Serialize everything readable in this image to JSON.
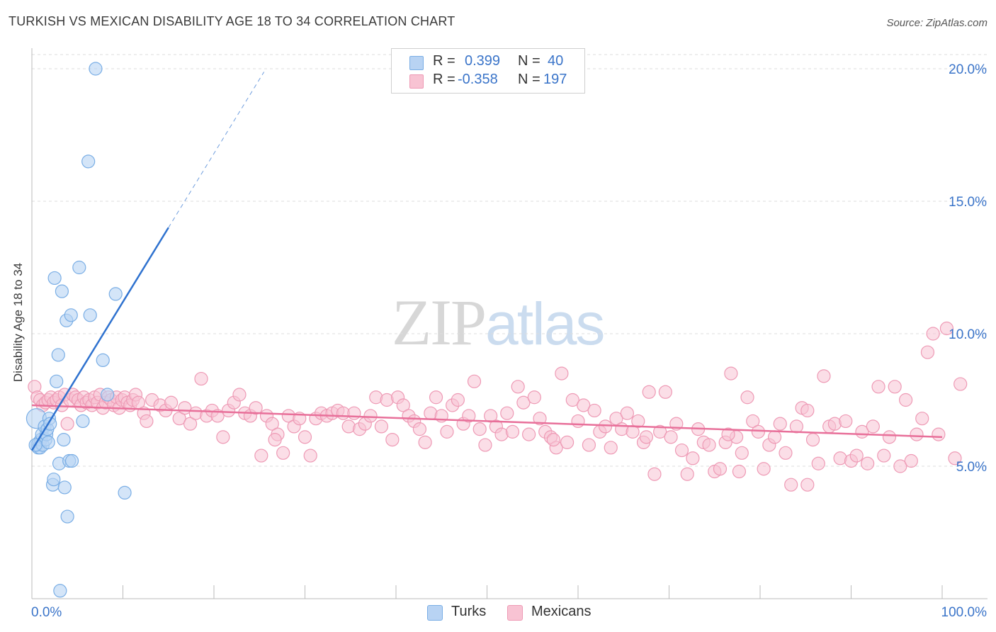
{
  "title": "TURKISH VS MEXICAN DISABILITY AGE 18 TO 34 CORRELATION CHART",
  "source": "Source: ZipAtlas.com",
  "watermark": {
    "zip": "ZIP",
    "atlas": "atlas"
  },
  "legend_top": [
    {
      "r_label": "R =",
      "r_value": "0.399",
      "n_label": "N =",
      "n_value": "40"
    },
    {
      "r_label": "R =",
      "r_value": "-0.358",
      "n_label": "N =",
      "n_value": "197"
    }
  ],
  "legend_bottom": [
    "Turks",
    "Mexicans"
  ],
  "colors": {
    "turks_fill": "#b8d3f3",
    "turks_stroke": "#7aaee5",
    "turks_line": "#2f72cf",
    "mexicans_fill": "#f8c3d3",
    "mexicans_stroke": "#ee9ab5",
    "mexicans_line": "#e8709a",
    "axis_text": "#3a74c9",
    "grid": "#dddddd"
  },
  "chart_data": {
    "type": "scatter",
    "title": "TURKISH VS MEXICAN DISABILITY AGE 18 TO 34 CORRELATION CHART",
    "xlabel": "",
    "ylabel": "Disability Age 18 to 34",
    "xlim": [
      0,
      100
    ],
    "ylim": [
      0,
      20
    ],
    "x_tick_labels": [
      "0.0%",
      "100.0%"
    ],
    "y_ticks": [
      5,
      10,
      15,
      20
    ],
    "y_tick_labels": [
      "5.0%",
      "10.0%",
      "15.0%",
      "20.0%"
    ],
    "grid": true,
    "legend_position": "top-center",
    "series": [
      {
        "name": "Turks",
        "r": 0.399,
        "n": 40,
        "trend": {
          "x1": 0.0,
          "y1": 5.6,
          "x2": 15.0,
          "y2": 14.0,
          "dashed_to_x": 25.5
        },
        "points": [
          [
            0.5,
            6.8
          ],
          [
            0.6,
            5.8
          ],
          [
            0.7,
            5.7
          ],
          [
            0.8,
            5.9
          ],
          [
            0.9,
            5.7
          ],
          [
            1.0,
            6.0
          ],
          [
            1.1,
            6.2
          ],
          [
            1.2,
            5.8
          ],
          [
            1.4,
            6.5
          ],
          [
            1.5,
            6.0
          ],
          [
            1.6,
            6.2
          ],
          [
            1.7,
            6.4
          ],
          [
            1.8,
            5.9
          ],
          [
            1.9,
            6.8
          ],
          [
            2.0,
            6.6
          ],
          [
            2.3,
            4.3
          ],
          [
            2.4,
            4.5
          ],
          [
            2.5,
            12.1
          ],
          [
            2.7,
            8.2
          ],
          [
            2.9,
            9.2
          ],
          [
            3.0,
            5.1
          ],
          [
            3.1,
            0.3
          ],
          [
            3.3,
            11.6
          ],
          [
            3.5,
            6.0
          ],
          [
            3.6,
            4.2
          ],
          [
            3.8,
            10.5
          ],
          [
            3.9,
            3.1
          ],
          [
            4.1,
            5.2
          ],
          [
            4.3,
            10.7
          ],
          [
            4.4,
            5.2
          ],
          [
            5.2,
            12.5
          ],
          [
            5.6,
            6.7
          ],
          [
            6.2,
            16.5
          ],
          [
            6.4,
            10.7
          ],
          [
            7.0,
            20.0
          ],
          [
            7.8,
            9.0
          ],
          [
            8.3,
            7.7
          ],
          [
            9.2,
            11.5
          ],
          [
            10.2,
            4.0
          ],
          [
            0.4,
            5.8
          ]
        ]
      },
      {
        "name": "Mexicans",
        "r": -0.358,
        "n": 197,
        "trend": {
          "x1": 0.0,
          "y1": 7.3,
          "x2": 100.0,
          "y2": 6.1
        },
        "points": [
          [
            0.3,
            8.0
          ],
          [
            0.6,
            7.6
          ],
          [
            0.9,
            7.5
          ],
          [
            1.2,
            7.3
          ],
          [
            1.5,
            7.4
          ],
          [
            1.8,
            7.5
          ],
          [
            2.1,
            7.6
          ],
          [
            2.4,
            7.4
          ],
          [
            2.7,
            7.5
          ],
          [
            3.0,
            7.6
          ],
          [
            3.3,
            7.3
          ],
          [
            3.6,
            7.7
          ],
          [
            3.9,
            6.6
          ],
          [
            4.2,
            7.5
          ],
          [
            4.5,
            7.7
          ],
          [
            4.8,
            7.6
          ],
          [
            5.1,
            7.5
          ],
          [
            5.4,
            7.3
          ],
          [
            5.7,
            7.6
          ],
          [
            6.0,
            7.4
          ],
          [
            6.3,
            7.5
          ],
          [
            6.6,
            7.3
          ],
          [
            6.9,
            7.6
          ],
          [
            7.2,
            7.4
          ],
          [
            7.5,
            7.7
          ],
          [
            7.8,
            7.2
          ],
          [
            8.1,
            7.4
          ],
          [
            8.4,
            7.6
          ],
          [
            8.7,
            7.5
          ],
          [
            9.0,
            7.3
          ],
          [
            9.3,
            7.6
          ],
          [
            9.6,
            7.2
          ],
          [
            9.9,
            7.5
          ],
          [
            10.2,
            7.6
          ],
          [
            10.5,
            7.4
          ],
          [
            10.8,
            7.3
          ],
          [
            11.1,
            7.5
          ],
          [
            11.4,
            7.7
          ],
          [
            11.7,
            7.4
          ],
          [
            12.3,
            7.0
          ],
          [
            12.6,
            6.7
          ],
          [
            13.2,
            7.5
          ],
          [
            14.1,
            7.3
          ],
          [
            14.7,
            7.1
          ],
          [
            15.3,
            7.4
          ],
          [
            16.2,
            6.8
          ],
          [
            16.8,
            7.2
          ],
          [
            17.4,
            6.6
          ],
          [
            18.0,
            7.0
          ],
          [
            18.6,
            8.3
          ],
          [
            19.2,
            6.9
          ],
          [
            19.8,
            7.1
          ],
          [
            20.4,
            6.9
          ],
          [
            21.0,
            6.1
          ],
          [
            21.6,
            7.1
          ],
          [
            22.2,
            7.4
          ],
          [
            22.8,
            7.7
          ],
          [
            23.4,
            7.0
          ],
          [
            24.0,
            6.9
          ],
          [
            24.6,
            7.2
          ],
          [
            25.2,
            5.4
          ],
          [
            25.8,
            6.9
          ],
          [
            26.4,
            6.6
          ],
          [
            27.0,
            6.2
          ],
          [
            27.6,
            5.5
          ],
          [
            28.2,
            6.9
          ],
          [
            28.8,
            6.5
          ],
          [
            29.4,
            6.8
          ],
          [
            30.0,
            6.1
          ],
          [
            30.6,
            5.4
          ],
          [
            31.2,
            6.8
          ],
          [
            31.8,
            7.0
          ],
          [
            32.4,
            6.9
          ],
          [
            33.0,
            7.0
          ],
          [
            33.6,
            7.1
          ],
          [
            34.2,
            7.0
          ],
          [
            34.8,
            6.5
          ],
          [
            35.4,
            7.0
          ],
          [
            36.0,
            6.4
          ],
          [
            36.6,
            6.6
          ],
          [
            37.2,
            6.9
          ],
          [
            37.8,
            7.6
          ],
          [
            38.4,
            6.5
          ],
          [
            39.0,
            7.5
          ],
          [
            39.6,
            6.0
          ],
          [
            40.2,
            7.6
          ],
          [
            40.8,
            7.3
          ],
          [
            41.4,
            6.9
          ],
          [
            42.0,
            6.7
          ],
          [
            42.6,
            6.4
          ],
          [
            43.2,
            5.9
          ],
          [
            43.8,
            7.0
          ],
          [
            44.4,
            7.6
          ],
          [
            45.0,
            6.9
          ],
          [
            45.6,
            6.3
          ],
          [
            46.2,
            7.3
          ],
          [
            46.8,
            7.5
          ],
          [
            47.4,
            6.6
          ],
          [
            48.0,
            6.9
          ],
          [
            48.6,
            8.2
          ],
          [
            49.2,
            6.4
          ],
          [
            49.8,
            5.8
          ],
          [
            50.4,
            6.9
          ],
          [
            51.0,
            6.5
          ],
          [
            51.6,
            6.2
          ],
          [
            52.2,
            7.0
          ],
          [
            52.8,
            6.3
          ],
          [
            53.4,
            8.0
          ],
          [
            54.0,
            7.4
          ],
          [
            54.6,
            6.2
          ],
          [
            55.2,
            7.6
          ],
          [
            55.8,
            6.8
          ],
          [
            56.4,
            6.3
          ],
          [
            57.0,
            6.1
          ],
          [
            57.6,
            5.7
          ],
          [
            58.2,
            8.5
          ],
          [
            58.8,
            5.9
          ],
          [
            59.4,
            7.5
          ],
          [
            60.0,
            6.7
          ],
          [
            60.6,
            7.3
          ],
          [
            61.2,
            5.8
          ],
          [
            61.8,
            7.1
          ],
          [
            62.4,
            6.3
          ],
          [
            63.0,
            6.5
          ],
          [
            63.6,
            5.7
          ],
          [
            64.2,
            6.8
          ],
          [
            64.8,
            6.4
          ],
          [
            65.4,
            7.0
          ],
          [
            66.0,
            6.3
          ],
          [
            66.6,
            6.7
          ],
          [
            67.2,
            5.9
          ],
          [
            67.8,
            7.8
          ],
          [
            68.4,
            4.7
          ],
          [
            69.0,
            6.3
          ],
          [
            69.6,
            7.8
          ],
          [
            70.2,
            6.1
          ],
          [
            70.8,
            6.6
          ],
          [
            71.4,
            5.6
          ],
          [
            72.0,
            4.7
          ],
          [
            72.6,
            5.3
          ],
          [
            73.2,
            6.4
          ],
          [
            73.8,
            5.9
          ],
          [
            74.4,
            5.8
          ],
          [
            75.0,
            4.8
          ],
          [
            75.6,
            4.9
          ],
          [
            76.2,
            5.9
          ],
          [
            76.8,
            8.5
          ],
          [
            77.4,
            6.1
          ],
          [
            78.0,
            5.5
          ],
          [
            78.6,
            7.6
          ],
          [
            79.2,
            6.7
          ],
          [
            79.8,
            6.3
          ],
          [
            80.4,
            4.9
          ],
          [
            81.0,
            5.8
          ],
          [
            81.6,
            6.1
          ],
          [
            82.2,
            6.6
          ],
          [
            82.8,
            5.5
          ],
          [
            83.4,
            4.3
          ],
          [
            84.0,
            6.5
          ],
          [
            84.6,
            7.2
          ],
          [
            85.2,
            7.1
          ],
          [
            85.8,
            6.0
          ],
          [
            86.4,
            5.1
          ],
          [
            87.0,
            8.4
          ],
          [
            87.6,
            6.5
          ],
          [
            88.2,
            6.6
          ],
          [
            88.8,
            5.3
          ],
          [
            89.4,
            6.7
          ],
          [
            90.0,
            5.2
          ],
          [
            90.6,
            5.4
          ],
          [
            91.2,
            6.3
          ],
          [
            91.8,
            5.1
          ],
          [
            92.4,
            6.5
          ],
          [
            93.0,
            8.0
          ],
          [
            93.6,
            5.4
          ],
          [
            94.2,
            6.1
          ],
          [
            94.8,
            8.0
          ],
          [
            95.4,
            5.0
          ],
          [
            96.0,
            7.5
          ],
          [
            96.6,
            5.2
          ],
          [
            97.2,
            6.2
          ],
          [
            97.8,
            6.8
          ],
          [
            98.4,
            9.3
          ],
          [
            99.0,
            10.0
          ],
          [
            99.6,
            6.2
          ],
          [
            100.5,
            10.2
          ],
          [
            101.4,
            5.3
          ],
          [
            102.0,
            8.1
          ],
          [
            26.7,
            6.0
          ],
          [
            57.3,
            6.0
          ],
          [
            67.5,
            6.1
          ],
          [
            76.5,
            6.2
          ],
          [
            77.7,
            4.8
          ],
          [
            85.2,
            4.3
          ]
        ]
      }
    ]
  }
}
